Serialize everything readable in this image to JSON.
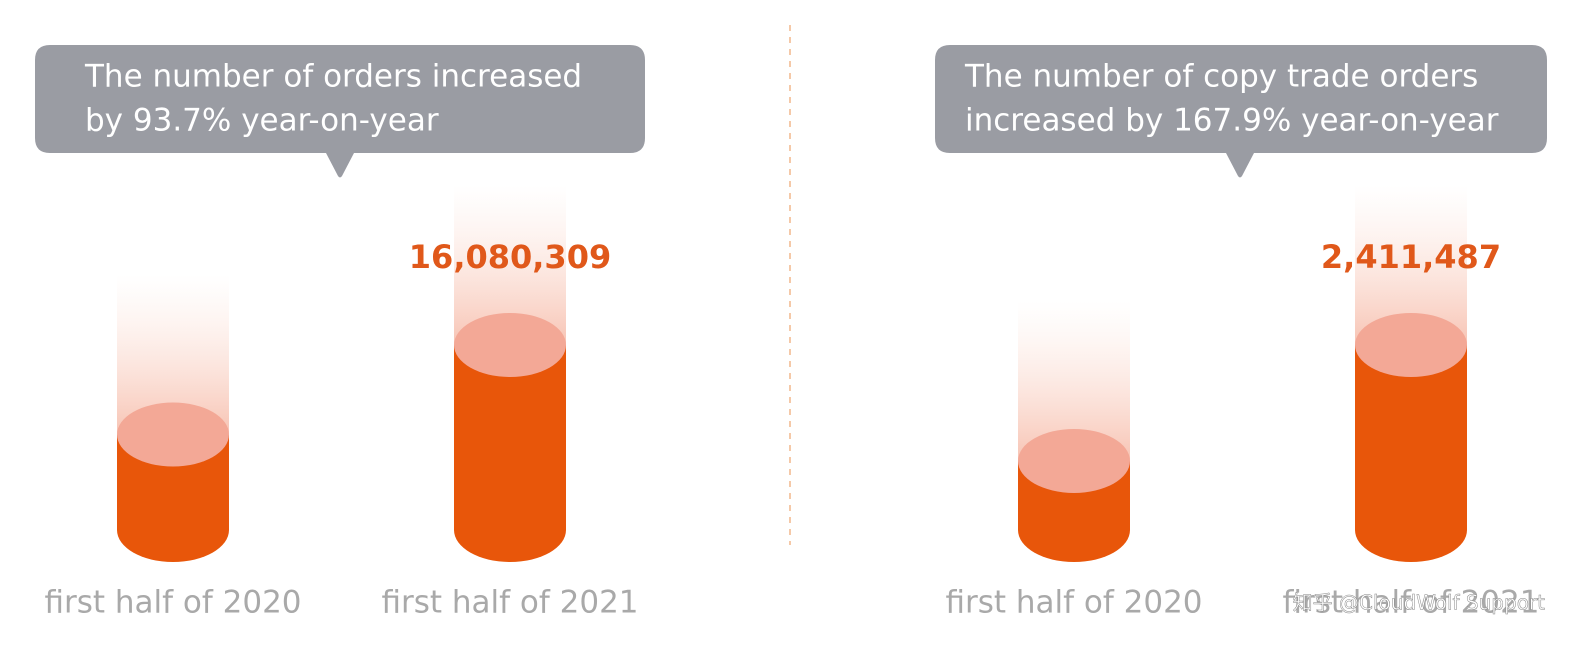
{
  "chart_data": [
    {
      "type": "cylinder",
      "title_lines": [
        "The number of orders increased",
        "by 93.7% year-on-year"
      ],
      "categories": [
        "first half of 2020",
        "first half of 2021"
      ],
      "values": [
        8300000,
        16080309
      ],
      "value_labels": [
        null,
        "16,080,309"
      ],
      "color": "#e8560a"
    },
    {
      "type": "cylinder",
      "title_lines": [
        "The number of copy trade orders",
        "increased by 167.9% year-on-year"
      ],
      "categories": [
        "first half of 2020",
        "first half of 2021"
      ],
      "values": [
        900000,
        2411487
      ],
      "value_labels": [
        null,
        "2,411,487"
      ],
      "color": "#e8560a"
    }
  ],
  "watermark": "知乎 @CloudWolf Support"
}
